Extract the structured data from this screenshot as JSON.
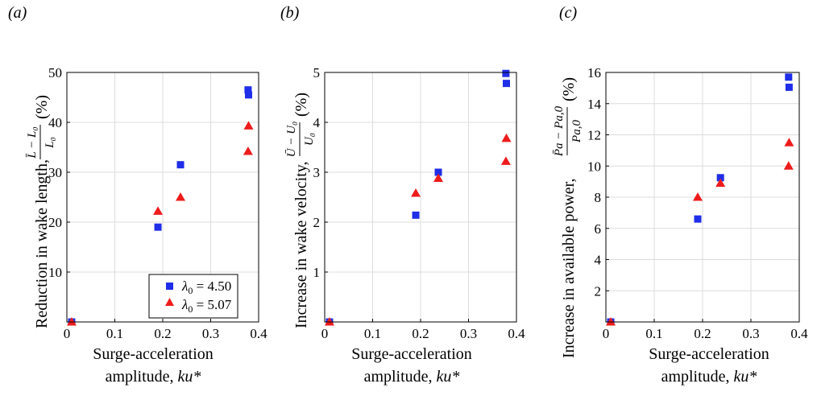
{
  "colors": {
    "series1": "#1f2ee8",
    "series2": "#ee1c1c",
    "grid": "#dcdcdc",
    "axis": "#000000"
  },
  "chart_data": [
    {
      "type": "scatter",
      "panel_label": "(a)",
      "xlabel_line1": "Surge-acceleration",
      "xlabel_line2_prefix": "amplitude, ",
      "xlabel_var": "ku*",
      "ylabel_prefix": "Reduction in wake length, ",
      "ylabel_frac_num": "L̄ − L₀",
      "ylabel_frac_den": "L₀",
      "ylabel_suffix": "(%)",
      "xlim": [
        0,
        0.4
      ],
      "ylim": [
        0,
        50
      ],
      "xticks": [
        0,
        0.1,
        0.2,
        0.3,
        0.4
      ],
      "xtick_labels": [
        "0",
        "0.1",
        "0.2",
        "0.3",
        "0.4"
      ],
      "yticks": [
        10,
        20,
        30,
        40,
        50
      ],
      "ytick_labels": [
        "10",
        "20",
        "30",
        "40",
        "50"
      ],
      "grid": true,
      "legend_position": "bottom-right",
      "series": [
        {
          "name": "λ0 = 4.50",
          "marker": "square",
          "x": [
            0.01,
            0.19,
            0.237,
            0.378,
            0.379
          ],
          "y": [
            0,
            19.0,
            31.5,
            46.5,
            45.5
          ]
        },
        {
          "name": "λ0 = 5.07",
          "marker": "triangle",
          "x": [
            0.01,
            0.19,
            0.237,
            0.378,
            0.379
          ],
          "y": [
            0,
            22.2,
            25.0,
            34.2,
            39.3
          ]
        }
      ],
      "legend": [
        {
          "var": "λ",
          "sub": "0",
          "value": " = 4.50"
        },
        {
          "var": "λ",
          "sub": "0",
          "value": " = 5.07"
        }
      ]
    },
    {
      "type": "scatter",
      "panel_label": "(b)",
      "xlabel_line1": "Surge-acceleration",
      "xlabel_line2_prefix": "amplitude, ",
      "xlabel_var": "ku*",
      "ylabel_prefix": "Increase in wake velocity, ",
      "ylabel_frac_num": "Ū − U₀",
      "ylabel_frac_den": "U₀",
      "ylabel_suffix": "(%)",
      "xlim": [
        0,
        0.4
      ],
      "ylim": [
        0,
        5
      ],
      "xticks": [
        0,
        0.1,
        0.2,
        0.3,
        0.4
      ],
      "xtick_labels": [
        "0",
        "0.1",
        "0.2",
        "0.3",
        "0.4"
      ],
      "yticks": [
        1,
        2,
        3,
        4,
        5
      ],
      "ytick_labels": [
        "1",
        "2",
        "3",
        "4",
        "5"
      ],
      "grid": true,
      "series": [
        {
          "name": "λ0 = 4.50",
          "marker": "square",
          "x": [
            0.01,
            0.19,
            0.237,
            0.378,
            0.379
          ],
          "y": [
            0,
            2.14,
            3.0,
            4.98,
            4.78
          ]
        },
        {
          "name": "λ0 = 5.07",
          "marker": "triangle",
          "x": [
            0.01,
            0.19,
            0.237,
            0.378,
            0.379
          ],
          "y": [
            0,
            2.58,
            2.88,
            3.22,
            3.68
          ]
        }
      ]
    },
    {
      "type": "scatter",
      "panel_label": "(c)",
      "xlabel_line1": "Surge-acceleration",
      "xlabel_line2_prefix": "amplitude, ",
      "xlabel_var": "ku*",
      "ylabel_prefix": "Increase in available power, ",
      "ylabel_frac_num": "P̄a − Pa,0",
      "ylabel_frac_den": "Pa,0",
      "ylabel_suffix": "(%)",
      "xlim": [
        0,
        0.4
      ],
      "ylim": [
        0,
        16
      ],
      "xticks": [
        0,
        0.1,
        0.2,
        0.3,
        0.4
      ],
      "xtick_labels": [
        "0",
        "0.1",
        "0.2",
        "0.3",
        "0.4"
      ],
      "yticks": [
        2,
        4,
        6,
        8,
        10,
        12,
        14,
        16
      ],
      "ytick_labels": [
        "2",
        "4",
        "6",
        "8",
        "10",
        "12",
        "14",
        "16"
      ],
      "grid": true,
      "series": [
        {
          "name": "λ0 = 4.50",
          "marker": "square",
          "x": [
            0.01,
            0.19,
            0.237,
            0.378,
            0.379
          ],
          "y": [
            0,
            6.6,
            9.25,
            15.7,
            15.05
          ]
        },
        {
          "name": "λ0 = 5.07",
          "marker": "triangle",
          "x": [
            0.01,
            0.19,
            0.237,
            0.378,
            0.379
          ],
          "y": [
            0,
            8.0,
            8.9,
            10.0,
            11.5
          ]
        }
      ]
    }
  ]
}
